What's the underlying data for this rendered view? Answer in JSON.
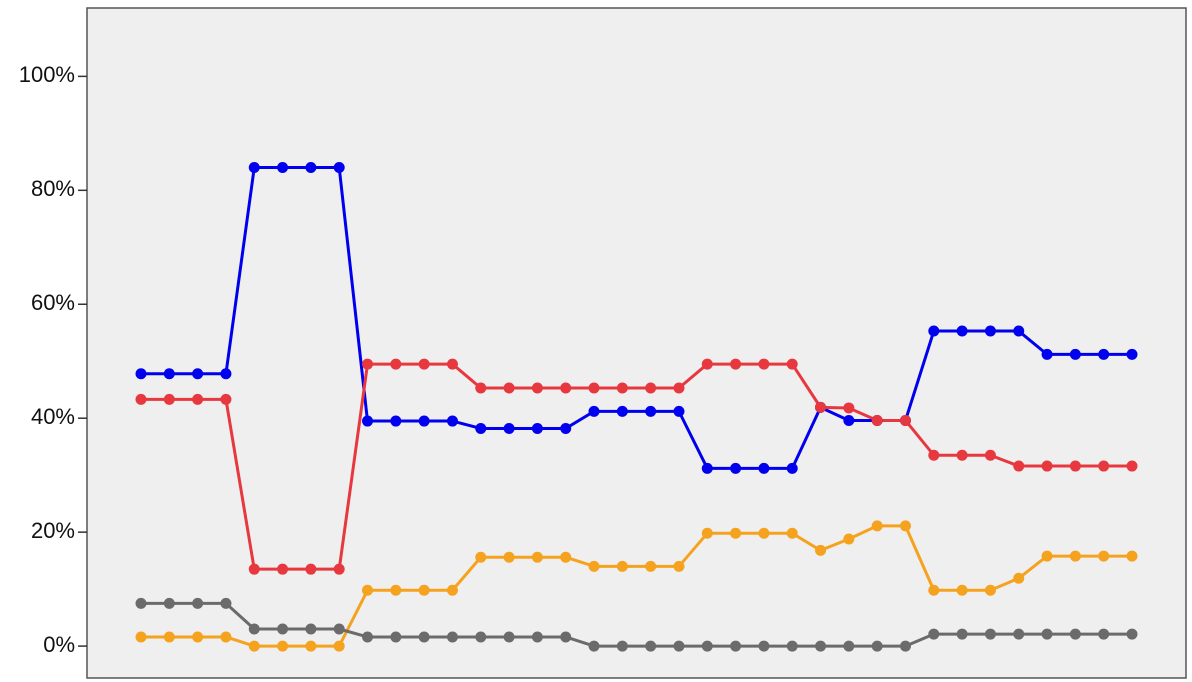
{
  "chart_data": {
    "type": "line",
    "categories": [
      null,
      null,
      null,
      null,
      null,
      null,
      null,
      null,
      null,
      null,
      null,
      null,
      null,
      null,
      null,
      null,
      null,
      null,
      null,
      null,
      null,
      null,
      null,
      null,
      null,
      null,
      null,
      null,
      null,
      null,
      null,
      null,
      null,
      null,
      null,
      null
    ],
    "series": [
      {
        "color": "#0000ee",
        "values": [
          47.8,
          47.8,
          47.8,
          47.8,
          84,
          84,
          84,
          84,
          39.5,
          39.5,
          39.5,
          39.5,
          38.2,
          38.2,
          38.2,
          38.2,
          41.2,
          41.2,
          41.2,
          41.2,
          31.2,
          31.2,
          31.2,
          31.2,
          41.9,
          39.6,
          39.6,
          39.6,
          55.3,
          55.3,
          55.3,
          55.3,
          51.2,
          51.2,
          51.2,
          51.2
        ]
      },
      {
        "color": "#e8383f",
        "values": [
          43.3,
          43.3,
          43.3,
          43.3,
          13.5,
          13.5,
          13.5,
          13.5,
          49.5,
          49.5,
          49.5,
          49.5,
          45.3,
          45.3,
          45.3,
          45.3,
          45.3,
          45.3,
          45.3,
          45.3,
          49.5,
          49.5,
          49.5,
          49.5,
          41.9,
          41.8,
          39.6,
          39.6,
          33.5,
          33.5,
          33.5,
          31.6,
          31.6,
          31.6,
          31.6,
          31.6
        ]
      },
      {
        "color": "#f5a21f",
        "values": [
          1.6,
          1.6,
          1.6,
          1.6,
          0,
          0,
          0,
          0,
          9.8,
          9.8,
          9.8,
          9.8,
          15.6,
          15.6,
          15.6,
          15.6,
          14,
          14,
          14,
          14,
          19.8,
          19.8,
          19.8,
          19.8,
          16.8,
          18.8,
          21.1,
          21.1,
          9.8,
          9.8,
          9.8,
          11.9,
          15.8,
          15.8,
          15.8,
          15.8
        ]
      },
      {
        "color": "#6b6b6b",
        "values": [
          7.5,
          7.5,
          7.5,
          7.5,
          3,
          3,
          3,
          3,
          1.6,
          1.6,
          1.6,
          1.6,
          1.6,
          1.6,
          1.6,
          1.6,
          0,
          0,
          0,
          0,
          0,
          0,
          0,
          0,
          0,
          0,
          0,
          0,
          2.1,
          2.1,
          2.1,
          2.1,
          2.1,
          2.1,
          2.1,
          2.1
        ]
      }
    ],
    "ylim": [
      -5.6,
      112
    ],
    "yticks": [
      {
        "value": 0,
        "label": "0%"
      },
      {
        "value": 20,
        "label": "20%"
      },
      {
        "value": 40,
        "label": "40%"
      },
      {
        "value": 60,
        "label": "60%"
      },
      {
        "value": 80,
        "label": "80%"
      },
      {
        "value": 100,
        "label": "100%"
      }
    ],
    "background": "#efefef"
  }
}
